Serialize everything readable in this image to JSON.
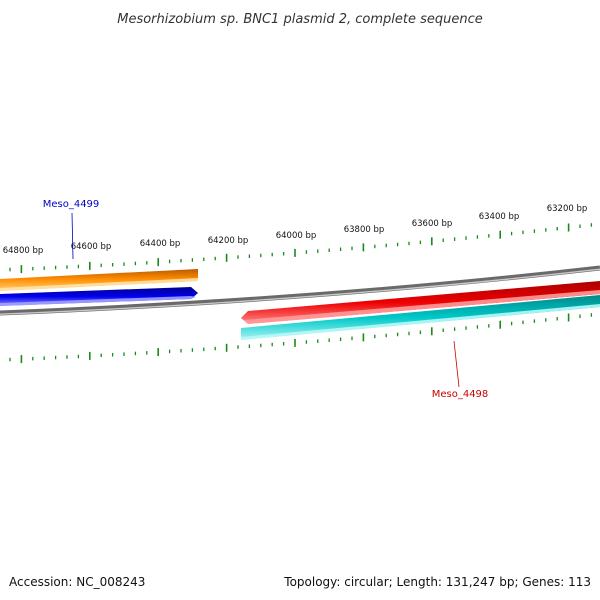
{
  "title": "Mesorhizobium sp. BNC1 plasmid 2, complete sequence",
  "accession": "Accession: NC_008243",
  "summary": "Topology: circular; Length: 131,247 bp; Genes: 113",
  "ticks": [
    "64800 bp",
    "64600 bp",
    "64400 bp",
    "64200 bp",
    "64000 bp",
    "63800 bp",
    "63600 bp",
    "63400 bp",
    "63200 bp"
  ],
  "genes": [
    {
      "name": "Meso_4499",
      "color": "#0000cc"
    },
    {
      "name": "Meso_4498",
      "color": "#cc0000"
    }
  ],
  "colors": {
    "orange": "#ff8c00",
    "blue": "#0000ee",
    "red": "#ee0000",
    "cyan": "#00c8c8",
    "backbone": "#808080",
    "tick": "#1a8a1a"
  }
}
